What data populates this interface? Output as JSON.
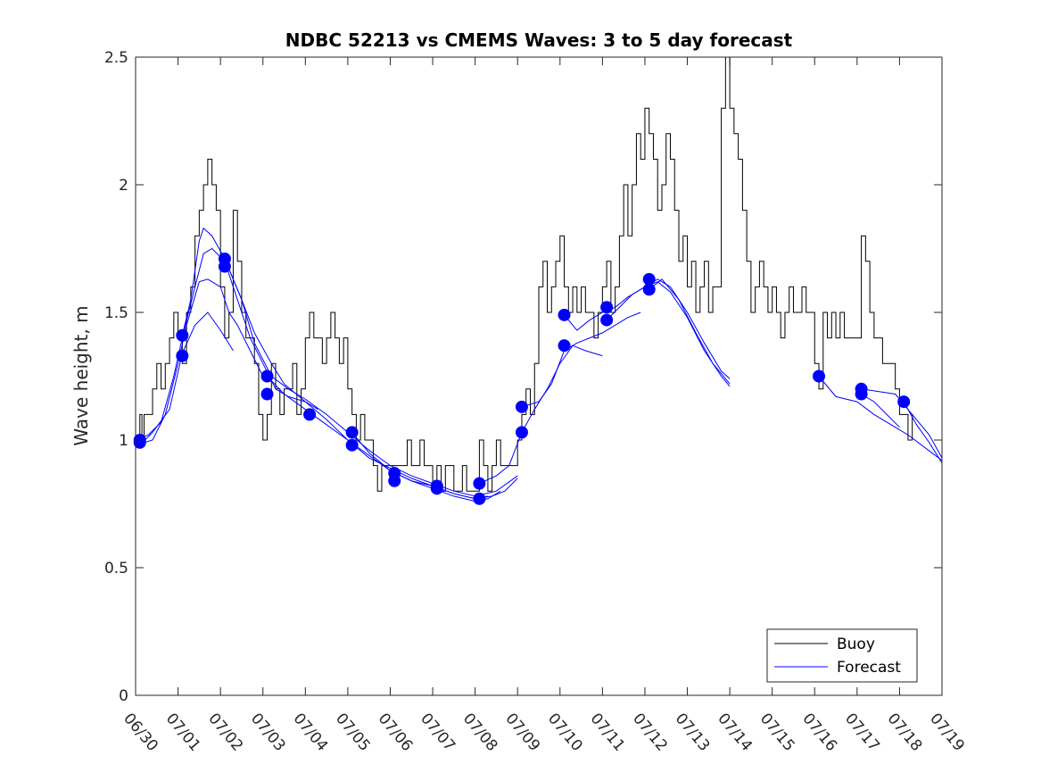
{
  "chart_data": {
    "type": "line",
    "title": "NDBC 52213 vs CMEMS Waves: 3 to 5 day forecast",
    "xlabel": "",
    "ylabel": "Wave height, m",
    "x_ticks": [
      "06/30",
      "07/01",
      "07/02",
      "07/03",
      "07/04",
      "07/05",
      "07/06",
      "07/07",
      "07/08",
      "07/09",
      "07/10",
      "07/11",
      "07/12",
      "07/13",
      "07/14",
      "07/15",
      "07/16",
      "07/17",
      "07/18",
      "07/19"
    ],
    "y_ticks": [
      "0",
      "0.5",
      "1",
      "1.5",
      "2",
      "2.5"
    ],
    "xlim": [
      0,
      19
    ],
    "ylim": [
      0,
      2.5
    ],
    "legend": {
      "position": "bottom-right",
      "entries": [
        {
          "name": "Buoy",
          "color": "#000000"
        },
        {
          "name": "Forecast",
          "color": "#0000ff"
        }
      ]
    },
    "buoy": [
      [
        0.0,
        0.99
      ],
      [
        0.05,
        0.97
      ],
      [
        0.1,
        1.1
      ],
      [
        0.15,
        1.0
      ],
      [
        0.2,
        1.1
      ],
      [
        0.3,
        1.1
      ],
      [
        0.4,
        1.2
      ],
      [
        0.5,
        1.3
      ],
      [
        0.6,
        1.2
      ],
      [
        0.7,
        1.3
      ],
      [
        0.8,
        1.4
      ],
      [
        0.9,
        1.5
      ],
      [
        1.0,
        1.4
      ],
      [
        1.1,
        1.3
      ],
      [
        1.2,
        1.5
      ],
      [
        1.3,
        1.6
      ],
      [
        1.4,
        1.8
      ],
      [
        1.5,
        1.9
      ],
      [
        1.6,
        2.0
      ],
      [
        1.7,
        2.1
      ],
      [
        1.8,
        2.0
      ],
      [
        1.9,
        1.9
      ],
      [
        2.0,
        1.6
      ],
      [
        2.1,
        1.4
      ],
      [
        2.2,
        1.5
      ],
      [
        2.3,
        1.9
      ],
      [
        2.4,
        1.7
      ],
      [
        2.5,
        1.5
      ],
      [
        2.6,
        1.4
      ],
      [
        2.7,
        1.4
      ],
      [
        2.8,
        1.3
      ],
      [
        2.9,
        1.1
      ],
      [
        3.0,
        1.0
      ],
      [
        3.1,
        1.1
      ],
      [
        3.2,
        1.3
      ],
      [
        3.3,
        1.2
      ],
      [
        3.4,
        1.1
      ],
      [
        3.5,
        1.2
      ],
      [
        3.6,
        1.2
      ],
      [
        3.7,
        1.3
      ],
      [
        3.8,
        1.1
      ],
      [
        3.9,
        1.2
      ],
      [
        4.0,
        1.4
      ],
      [
        4.1,
        1.5
      ],
      [
        4.2,
        1.4
      ],
      [
        4.3,
        1.4
      ],
      [
        4.4,
        1.3
      ],
      [
        4.5,
        1.4
      ],
      [
        4.6,
        1.5
      ],
      [
        4.7,
        1.4
      ],
      [
        4.8,
        1.3
      ],
      [
        4.9,
        1.4
      ],
      [
        5.0,
        1.2
      ],
      [
        5.1,
        1.1
      ],
      [
        5.2,
        1.0
      ],
      [
        5.3,
        1.1
      ],
      [
        5.4,
        1.0
      ],
      [
        5.5,
        1.0
      ],
      [
        5.6,
        0.9
      ],
      [
        5.7,
        0.8
      ],
      [
        5.8,
        0.9
      ],
      [
        5.9,
        0.9
      ],
      [
        6.0,
        0.9
      ],
      [
        6.1,
        0.9
      ],
      [
        6.2,
        0.9
      ],
      [
        6.3,
        0.9
      ],
      [
        6.4,
        1.0
      ],
      [
        6.5,
        0.9
      ],
      [
        6.6,
        0.9
      ],
      [
        6.7,
        1.0
      ],
      [
        6.8,
        0.9
      ],
      [
        6.9,
        0.9
      ],
      [
        7.0,
        0.8
      ],
      [
        7.1,
        0.9
      ],
      [
        7.2,
        0.8
      ],
      [
        7.3,
        0.9
      ],
      [
        7.4,
        0.9
      ],
      [
        7.5,
        0.8
      ],
      [
        7.6,
        0.8
      ],
      [
        7.7,
        0.9
      ],
      [
        7.8,
        0.8
      ],
      [
        7.9,
        0.8
      ],
      [
        8.0,
        0.8
      ],
      [
        8.1,
        1.0
      ],
      [
        8.2,
        0.9
      ],
      [
        8.3,
        0.8
      ],
      [
        8.4,
        0.9
      ],
      [
        8.5,
        1.0
      ],
      [
        8.6,
        0.9
      ],
      [
        8.7,
        0.9
      ],
      [
        8.8,
        0.9
      ],
      [
        8.9,
        0.9
      ],
      [
        9.0,
        1.0
      ],
      [
        9.1,
        1.1
      ],
      [
        9.2,
        1.2
      ],
      [
        9.3,
        1.1
      ],
      [
        9.4,
        1.3
      ],
      [
        9.5,
        1.6
      ],
      [
        9.6,
        1.7
      ],
      [
        9.7,
        1.5
      ],
      [
        9.8,
        1.6
      ],
      [
        9.9,
        1.7
      ],
      [
        10.0,
        1.8
      ],
      [
        10.1,
        1.6
      ],
      [
        10.2,
        1.5
      ],
      [
        10.3,
        1.6
      ],
      [
        10.4,
        1.5
      ],
      [
        10.5,
        1.6
      ],
      [
        10.6,
        1.5
      ],
      [
        10.7,
        1.5
      ],
      [
        10.8,
        1.4
      ],
      [
        10.9,
        1.5
      ],
      [
        11.0,
        1.6
      ],
      [
        11.1,
        1.7
      ],
      [
        11.2,
        1.5
      ],
      [
        11.3,
        1.6
      ],
      [
        11.4,
        1.8
      ],
      [
        11.5,
        2.0
      ],
      [
        11.6,
        1.8
      ],
      [
        11.7,
        2.0
      ],
      [
        11.8,
        2.2
      ],
      [
        11.9,
        2.1
      ],
      [
        12.0,
        2.3
      ],
      [
        12.1,
        2.2
      ],
      [
        12.2,
        2.1
      ],
      [
        12.3,
        1.9
      ],
      [
        12.4,
        2.0
      ],
      [
        12.5,
        2.2
      ],
      [
        12.6,
        2.1
      ],
      [
        12.7,
        1.9
      ],
      [
        12.8,
        1.7
      ],
      [
        12.9,
        1.8
      ],
      [
        13.0,
        1.6
      ],
      [
        13.1,
        1.7
      ],
      [
        13.2,
        1.5
      ],
      [
        13.3,
        1.6
      ],
      [
        13.4,
        1.7
      ],
      [
        13.5,
        1.5
      ],
      [
        13.6,
        1.6
      ],
      [
        13.7,
        1.6
      ],
      [
        13.8,
        2.3
      ],
      [
        13.9,
        2.5
      ],
      [
        14.0,
        2.3
      ],
      [
        14.1,
        2.2
      ],
      [
        14.2,
        2.1
      ],
      [
        14.3,
        1.9
      ],
      [
        14.4,
        1.7
      ],
      [
        14.5,
        1.5
      ],
      [
        14.6,
        1.6
      ],
      [
        14.7,
        1.7
      ],
      [
        14.8,
        1.6
      ],
      [
        14.9,
        1.5
      ],
      [
        15.0,
        1.6
      ],
      [
        15.1,
        1.5
      ],
      [
        15.2,
        1.4
      ],
      [
        15.3,
        1.5
      ],
      [
        15.4,
        1.6
      ],
      [
        15.5,
        1.5
      ],
      [
        15.6,
        1.5
      ],
      [
        15.7,
        1.6
      ],
      [
        15.8,
        1.5
      ],
      [
        15.9,
        1.5
      ],
      [
        16.0,
        1.3
      ],
      [
        16.1,
        1.2
      ],
      [
        16.2,
        1.5
      ],
      [
        16.3,
        1.4
      ],
      [
        16.4,
        1.5
      ],
      [
        16.5,
        1.4
      ],
      [
        16.6,
        1.5
      ],
      [
        16.7,
        1.4
      ],
      [
        16.8,
        1.4
      ],
      [
        16.9,
        1.4
      ],
      [
        17.0,
        1.4
      ],
      [
        17.1,
        1.8
      ],
      [
        17.2,
        1.7
      ],
      [
        17.3,
        1.5
      ],
      [
        17.4,
        1.4
      ],
      [
        17.5,
        1.4
      ],
      [
        17.6,
        1.3
      ],
      [
        17.7,
        1.3
      ],
      [
        17.8,
        1.3
      ],
      [
        17.9,
        1.2
      ],
      [
        18.0,
        1.1
      ],
      [
        18.1,
        1.1
      ],
      [
        18.2,
        1.0
      ],
      [
        18.3,
        1.1
      ]
    ],
    "forecast_series": [
      [
        [
          0.0,
          1.0
        ],
        [
          0.3,
          1.02
        ],
        [
          0.6,
          1.07
        ],
        [
          0.9,
          1.25
        ],
        [
          1.1,
          1.4
        ],
        [
          1.4,
          1.6
        ],
        [
          1.6,
          1.73
        ],
        [
          1.8,
          1.75
        ],
        [
          2.1,
          1.7
        ],
        [
          2.4,
          1.55
        ],
        [
          2.7,
          1.4
        ],
        [
          3.0,
          1.3
        ],
        [
          3.3,
          1.2
        ],
        [
          3.6,
          1.17
        ],
        [
          4.0,
          1.15
        ],
        [
          4.3,
          1.12
        ]
      ],
      [
        [
          0.0,
          0.98
        ],
        [
          0.4,
          1.0
        ],
        [
          0.7,
          1.1
        ],
        [
          1.0,
          1.3
        ],
        [
          1.2,
          1.45
        ],
        [
          1.5,
          1.62
        ],
        [
          1.7,
          1.63
        ],
        [
          2.0,
          1.6
        ],
        [
          2.2,
          1.5
        ],
        [
          2.4,
          1.45
        ],
        [
          2.7,
          1.35
        ],
        [
          3.0,
          1.25
        ]
      ],
      [
        [
          0.1,
          0.98
        ],
        [
          0.4,
          1.03
        ],
        [
          0.8,
          1.12
        ],
        [
          1.1,
          1.34
        ],
        [
          1.4,
          1.45
        ],
        [
          1.7,
          1.5
        ],
        [
          2.0,
          1.43
        ],
        [
          2.3,
          1.35
        ]
      ],
      [
        [
          1.1,
          1.41
        ],
        [
          1.3,
          1.55
        ],
        [
          1.5,
          1.78
        ],
        [
          1.6,
          1.83
        ],
        [
          1.8,
          1.8
        ],
        [
          2.1,
          1.71
        ],
        [
          2.5,
          1.55
        ],
        [
          2.8,
          1.42
        ],
        [
          3.2,
          1.3
        ],
        [
          3.5,
          1.22
        ],
        [
          4.0,
          1.15
        ],
        [
          4.5,
          1.08
        ],
        [
          5.0,
          1.0
        ],
        [
          5.5,
          0.93
        ],
        [
          6.0,
          0.89
        ],
        [
          6.5,
          0.85
        ],
        [
          7.0,
          0.82
        ],
        [
          7.5,
          0.79
        ],
        [
          8.0,
          0.77
        ],
        [
          8.3,
          0.78
        ]
      ],
      [
        [
          2.1,
          1.71
        ],
        [
          2.5,
          1.55
        ],
        [
          2.8,
          1.38
        ],
        [
          3.2,
          1.25
        ],
        [
          3.6,
          1.2
        ],
        [
          4.0,
          1.16
        ],
        [
          4.5,
          1.1
        ],
        [
          5.0,
          1.03
        ],
        [
          5.5,
          0.96
        ],
        [
          6.0,
          0.9
        ],
        [
          6.5,
          0.86
        ],
        [
          7.0,
          0.83
        ],
        [
          7.5,
          0.8
        ],
        [
          8.0,
          0.78
        ],
        [
          8.5,
          0.8
        ],
        [
          9.0,
          0.86
        ]
      ],
      [
        [
          3.1,
          1.25
        ],
        [
          3.5,
          1.18
        ],
        [
          4.0,
          1.12
        ],
        [
          4.5,
          1.06
        ],
        [
          5.0,
          1.0
        ],
        [
          5.5,
          0.94
        ],
        [
          6.0,
          0.88
        ],
        [
          6.5,
          0.84
        ],
        [
          7.0,
          0.82
        ],
        [
          7.5,
          0.79
        ],
        [
          8.0,
          0.77
        ],
        [
          8.4,
          0.78
        ],
        [
          8.7,
          0.8
        ],
        [
          9.0,
          0.85
        ]
      ],
      [
        [
          5.1,
          1.03
        ],
        [
          5.5,
          0.95
        ],
        [
          6.0,
          0.88
        ],
        [
          6.5,
          0.84
        ],
        [
          7.0,
          0.81
        ],
        [
          7.5,
          0.78
        ],
        [
          8.0,
          0.76
        ],
        [
          8.3,
          0.77
        ],
        [
          8.6,
          0.8
        ]
      ],
      [
        [
          8.1,
          0.83
        ],
        [
          8.5,
          0.86
        ],
        [
          8.8,
          0.9
        ],
        [
          9.1,
          1.03
        ],
        [
          9.4,
          1.12
        ],
        [
          9.7,
          1.2
        ],
        [
          10.0,
          1.3
        ],
        [
          10.3,
          1.37
        ],
        [
          10.6,
          1.35
        ],
        [
          11.0,
          1.33
        ]
      ],
      [
        [
          9.1,
          1.13
        ],
        [
          9.5,
          1.15
        ],
        [
          9.8,
          1.22
        ],
        [
          10.1,
          1.35
        ],
        [
          10.4,
          1.38
        ],
        [
          10.7,
          1.4
        ],
        [
          11.0,
          1.42
        ],
        [
          11.3,
          1.45
        ],
        [
          11.6,
          1.48
        ],
        [
          11.9,
          1.5
        ]
      ],
      [
        [
          10.1,
          1.49
        ],
        [
          10.4,
          1.43
        ],
        [
          10.7,
          1.47
        ],
        [
          11.0,
          1.5
        ],
        [
          11.3,
          1.52
        ],
        [
          11.6,
          1.56
        ],
        [
          12.0,
          1.6
        ],
        [
          12.3,
          1.62
        ],
        [
          12.6,
          1.58
        ],
        [
          13.0,
          1.48
        ],
        [
          13.4,
          1.35
        ],
        [
          13.8,
          1.25
        ],
        [
          14.0,
          1.21
        ]
      ],
      [
        [
          11.1,
          1.47
        ],
        [
          11.4,
          1.52
        ],
        [
          11.7,
          1.57
        ],
        [
          12.0,
          1.6
        ],
        [
          12.3,
          1.63
        ],
        [
          12.6,
          1.6
        ],
        [
          13.0,
          1.5
        ],
        [
          13.4,
          1.38
        ],
        [
          13.8,
          1.27
        ],
        [
          14.0,
          1.24
        ]
      ],
      [
        [
          12.1,
          1.59
        ],
        [
          12.4,
          1.63
        ],
        [
          12.8,
          1.55
        ],
        [
          13.2,
          1.42
        ],
        [
          13.6,
          1.3
        ],
        [
          14.0,
          1.22
        ]
      ],
      [
        [
          16.1,
          1.25
        ],
        [
          16.5,
          1.17
        ],
        [
          17.0,
          1.15
        ],
        [
          17.4,
          1.1
        ],
        [
          17.8,
          1.06
        ],
        [
          18.2,
          1.02
        ],
        [
          18.6,
          0.97
        ],
        [
          19.0,
          0.92
        ]
      ],
      [
        [
          17.1,
          1.2
        ],
        [
          17.5,
          1.19
        ],
        [
          17.9,
          1.18
        ],
        [
          18.3,
          1.1
        ],
        [
          18.7,
          1.02
        ],
        [
          19.0,
          0.93
        ]
      ],
      [
        [
          17.1,
          1.18
        ],
        [
          17.4,
          1.15
        ],
        [
          17.7,
          1.1
        ],
        [
          18.0,
          1.05
        ]
      ],
      [
        [
          18.1,
          1.15
        ],
        [
          18.4,
          1.06
        ],
        [
          18.7,
          0.99
        ],
        [
          19.0,
          0.91
        ]
      ]
    ],
    "forecast_points": [
      [
        0.1,
        0.99
      ],
      [
        0.1,
        1.0
      ],
      [
        1.1,
        1.41
      ],
      [
        1.1,
        1.33
      ],
      [
        2.1,
        1.71
      ],
      [
        2.1,
        1.68
      ],
      [
        3.1,
        1.25
      ],
      [
        3.1,
        1.18
      ],
      [
        4.1,
        1.1
      ],
      [
        5.1,
        1.03
      ],
      [
        5.1,
        0.98
      ],
      [
        6.1,
        0.87
      ],
      [
        6.1,
        0.84
      ],
      [
        7.1,
        0.82
      ],
      [
        7.1,
        0.81
      ],
      [
        8.1,
        0.83
      ],
      [
        8.1,
        0.77
      ],
      [
        9.1,
        1.13
      ],
      [
        9.1,
        1.03
      ],
      [
        10.1,
        1.49
      ],
      [
        10.1,
        1.37
      ],
      [
        11.1,
        1.52
      ],
      [
        11.1,
        1.47
      ],
      [
        12.1,
        1.63
      ],
      [
        12.1,
        1.59
      ],
      [
        16.1,
        1.25
      ],
      [
        17.1,
        1.2
      ],
      [
        17.1,
        1.18
      ],
      [
        18.1,
        1.15
      ]
    ]
  }
}
